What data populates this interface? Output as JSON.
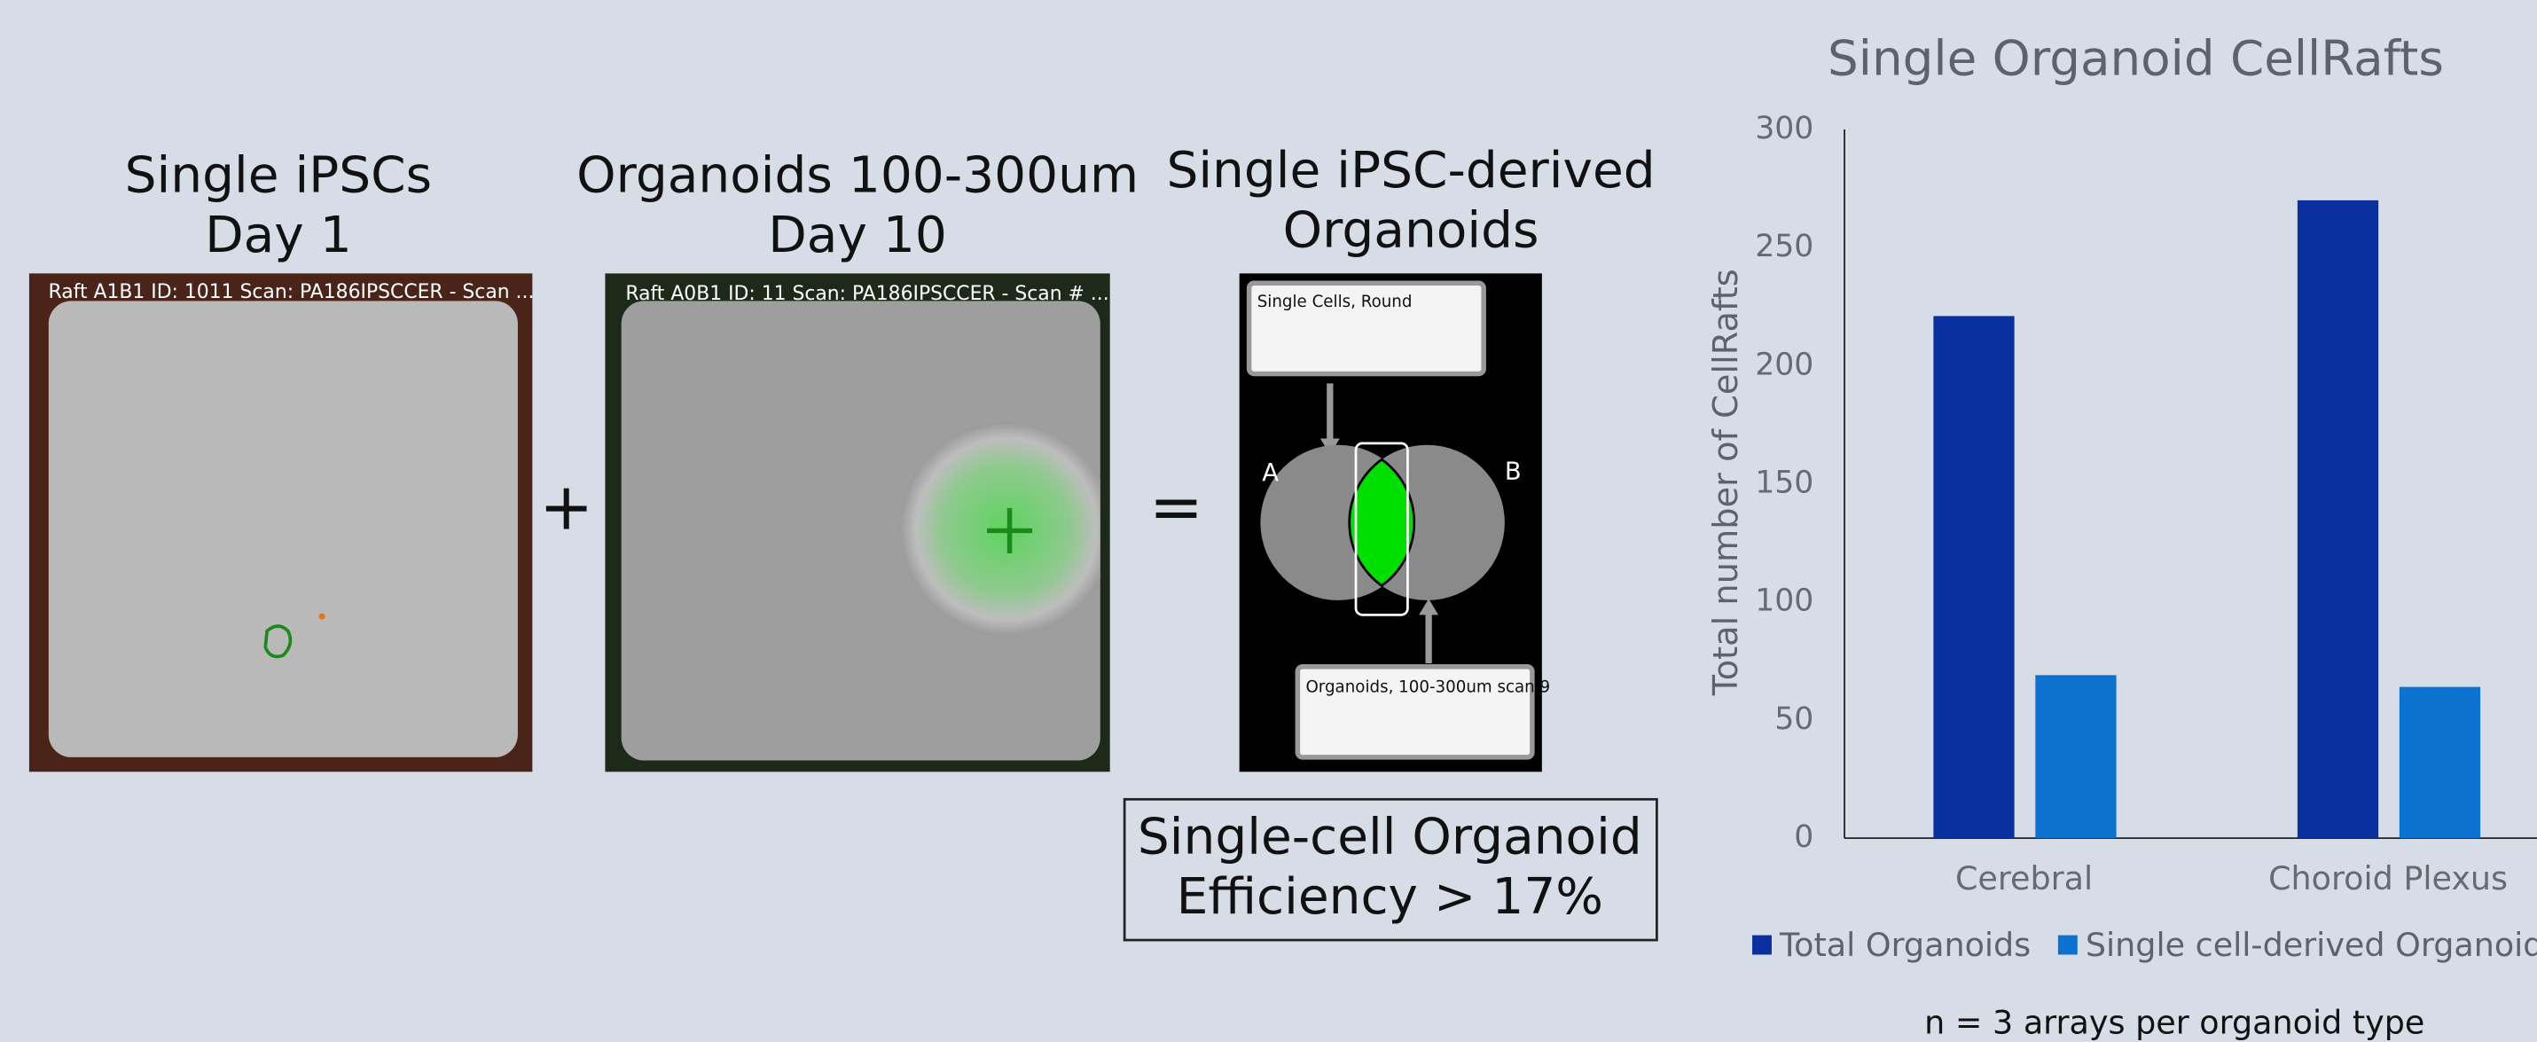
{
  "panels": [
    {
      "title": [
        "Single iPSCs",
        "Day 1"
      ],
      "caption": "Raft A1B1 ID: 1011 Scan: PA186IPSCCER - Scan ..."
    },
    {
      "title": [
        "Organoids 100-300um",
        "Day 10"
      ],
      "caption": "Raft A0B1 ID: 11 Scan: PA186IPSCCER - Scan # ..."
    },
    {
      "title": [
        "Single iPSC-derived",
        "Organoids"
      ],
      "gate_top": "Single Cells, Round",
      "gate_bottom": "Organoids, 100-300um scan 9",
      "label_a": "A",
      "label_b": "B"
    }
  ],
  "operators": [
    "+",
    "="
  ],
  "result": [
    "Single-cell Organoid",
    "Efficiency > 17%"
  ],
  "chart_data": {
    "type": "bar",
    "title": "Single Organoid CellRafts",
    "y_label": "Total number of CellRafts",
    "categories": [
      "Cerebral",
      "Choroid Plexus"
    ],
    "series": [
      {
        "name": "Total Organoids",
        "color": "#0a2f9e",
        "values": [
          221,
          270
        ]
      },
      {
        "name": "Single cell-derived Organoids",
        "color": "#0b72cf",
        "values": [
          69,
          64
        ]
      }
    ],
    "ylim": [
      0,
      300
    ],
    "yticks": [
      0,
      50,
      100,
      150,
      200,
      250,
      300
    ],
    "footnote": "n = 3 arrays per organoid type"
  }
}
